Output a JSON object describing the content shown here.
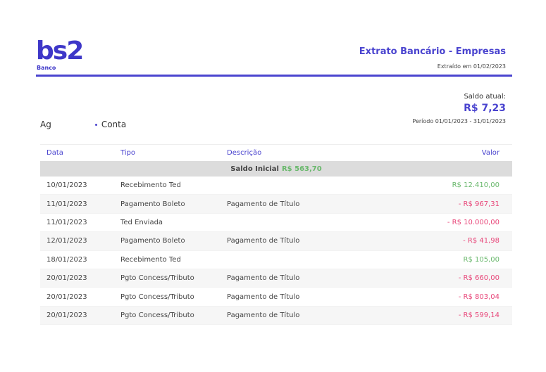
{
  "brand": {
    "logo_text": "bs2",
    "logo_sub": "Banco"
  },
  "header": {
    "title": "Extrato Bancário - Empresas",
    "extracted": "Extraído em 01/02/2023"
  },
  "balance": {
    "label": "Saldo atual:",
    "value": "R$ 7,23",
    "period": "Período 01/01/2023 - 31/01/2023"
  },
  "account": {
    "agency_label": "Ag",
    "account_label": "Conta"
  },
  "table": {
    "headers": {
      "date": "Data",
      "type": "Tipo",
      "description": "Descrição",
      "value": "Valor"
    },
    "initial_label": "Saldo Inicial",
    "initial_value": "R$ 563,70",
    "rows": [
      {
        "date": "10/01/2023",
        "type": "Recebimento Ted",
        "description": "",
        "value": "R$ 12.410,00",
        "sign": "pos"
      },
      {
        "date": "11/01/2023",
        "type": "Pagamento Boleto",
        "description": "Pagamento de Título",
        "value": "- R$ 967,31",
        "sign": "neg"
      },
      {
        "date": "11/01/2023",
        "type": "Ted Enviada",
        "description": "",
        "value": "- R$ 10.000,00",
        "sign": "neg"
      },
      {
        "date": "12/01/2023",
        "type": "Pagamento Boleto",
        "description": "Pagamento de Título",
        "value": "- R$ 41,98",
        "sign": "neg"
      },
      {
        "date": "18/01/2023",
        "type": "Recebimento Ted",
        "description": "",
        "value": "R$ 105,00",
        "sign": "pos"
      },
      {
        "date": "20/01/2023",
        "type": "Pgto Concess/Tributo",
        "description": "Pagamento de Título",
        "value": "- R$ 660,00",
        "sign": "neg"
      },
      {
        "date": "20/01/2023",
        "type": "Pgto Concess/Tributo",
        "description": "Pagamento de Título",
        "value": "- R$ 803,04",
        "sign": "neg"
      },
      {
        "date": "20/01/2023",
        "type": "Pgto Concess/Tributo",
        "description": "Pagamento de Título",
        "value": "- R$ 599,14",
        "sign": "neg"
      }
    ]
  }
}
